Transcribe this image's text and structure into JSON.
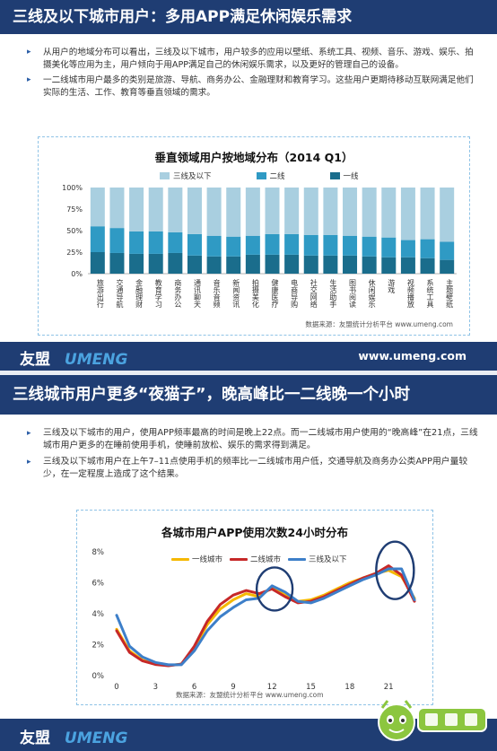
{
  "slide1": {
    "title": "三线及以下城市用户：多用APP满足休闲娱乐需求",
    "bullets": [
      "从用户的地域分布可以看出，三线及以下城市，用户较多的应用以壁纸、系统工具、视频、音乐、游戏、娱乐、拍摄美化等应用为主，用户倾向于用APP满足自己的休闲娱乐需求，以及更好的管理自己的设备。",
      "一二线城市用户最多的类别是旅游、导航、商务办公、金融理财和教育学习。这些用户更期待移动互联网满足他们实际的生活、工作、教育等垂直领域的需求。"
    ],
    "source": "数据来源：友盟统计分析平台 www.umeng.com",
    "logo_cn": "友盟",
    "logo_en": "UMENG",
    "url": "www.umeng.com",
    "colors": {
      "tier3": "#a9cfe0",
      "tier2": "#2f9ac4",
      "tier1": "#1a6d8c",
      "title_bar": "#1f3d73"
    }
  },
  "slide2": {
    "title": "三线城市用户更多“夜猫子”，晚高峰比一二线晚一个小时",
    "bullets": [
      "三线及以下城市的用户，使用APP频率最高的时间是晚上22点。而一二线城市用户使用的“晚高峰”在21点，三线城市用户更多的在睡前使用手机，使睡前放松、娱乐的需求得到满足。",
      "三线及以下城市用户在上午7–11点使用手机的频率比一二线城市用户低，交通导航及商务办公类APP用户量较少，在一定程度上造成了这个结果。"
    ],
    "source": "数据来源：友盟统计分析平台 www.umeng.com",
    "logo_cn": "友盟",
    "logo_en": "UMENG",
    "colors": {
      "tier1": "#f5b800",
      "tier2": "#c62828",
      "tier3": "#3d7fc9",
      "circle": "#1f3d73"
    }
  },
  "chart_data": [
    {
      "type": "bar",
      "stacked": true,
      "title": "垂直领域用户按地域分布（2014 Q1）",
      "categories": [
        "旅游出行",
        "交通导航",
        "金融理财",
        "教育学习",
        "商务办公",
        "通讯聊天",
        "音乐音频",
        "新闻资讯",
        "拍摄美化",
        "健康医疗",
        "电商导购",
        "社交网络",
        "生活助手",
        "图书阅读",
        "休闲娱乐",
        "游戏",
        "视频播放",
        "系统工具",
        "主题壁纸"
      ],
      "series": [
        {
          "name": "三线及以下",
          "values": [
            45,
            47,
            51,
            51,
            52,
            54,
            56,
            57,
            56,
            54,
            54,
            55,
            55,
            56,
            57,
            58,
            61,
            60,
            63
          ]
        },
        {
          "name": "二线",
          "values": [
            30,
            29,
            26,
            26,
            24,
            25,
            24,
            23,
            22,
            24,
            24,
            24,
            24,
            23,
            23,
            23,
            20,
            22,
            21
          ]
        },
        {
          "name": "一线",
          "values": [
            25,
            24,
            23,
            23,
            24,
            21,
            20,
            20,
            22,
            22,
            22,
            21,
            21,
            21,
            20,
            19,
            19,
            18,
            16
          ]
        }
      ],
      "yticks": [
        "0%",
        "25%",
        "50%",
        "75%",
        "100%"
      ],
      "ylim": [
        0,
        100
      ],
      "legend": "top"
    },
    {
      "type": "line",
      "title": "各城市用户APP使用次数24小时分布",
      "x": [
        0,
        1,
        2,
        3,
        4,
        5,
        6,
        7,
        8,
        9,
        10,
        11,
        12,
        13,
        14,
        15,
        16,
        17,
        18,
        19,
        20,
        21,
        22,
        23
      ],
      "xticks": [
        0,
        3,
        6,
        9,
        12,
        15,
        18,
        21
      ],
      "yticks": [
        "0%",
        "2%",
        "4%",
        "6%",
        "8%"
      ],
      "ylim": [
        0,
        8
      ],
      "series": [
        {
          "name": "一线城市",
          "values": [
            3.0,
            1.6,
            1.0,
            0.75,
            0.65,
            0.75,
            1.8,
            3.3,
            4.3,
            4.9,
            5.3,
            5.1,
            5.7,
            5.2,
            4.8,
            4.9,
            5.2,
            5.6,
            6.0,
            6.3,
            6.6,
            6.8,
            6.4,
            5.0
          ]
        },
        {
          "name": "二线城市",
          "values": [
            2.9,
            1.5,
            0.95,
            0.72,
            0.64,
            0.75,
            1.9,
            3.5,
            4.6,
            5.2,
            5.5,
            5.3,
            5.6,
            5.1,
            4.7,
            4.8,
            5.1,
            5.5,
            5.9,
            6.3,
            6.6,
            7.1,
            6.5,
            4.8
          ]
        },
        {
          "name": "三线及以下",
          "values": [
            3.9,
            1.9,
            1.2,
            0.85,
            0.7,
            0.7,
            1.6,
            2.9,
            3.8,
            4.4,
            4.9,
            5.0,
            5.8,
            5.4,
            4.8,
            4.7,
            5.0,
            5.4,
            5.8,
            6.2,
            6.5,
            6.9,
            6.9,
            4.9
          ]
        }
      ],
      "annotations": [
        "circle around hour 12",
        "circle around hours 21-22"
      ],
      "legend": "top-left"
    }
  ]
}
